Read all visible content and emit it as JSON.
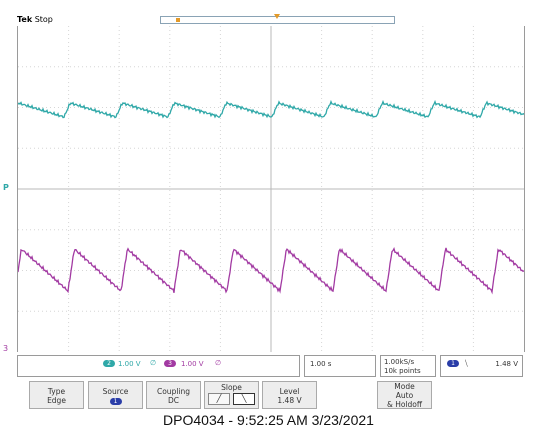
{
  "header": {
    "brand": "Tek",
    "state": "Stop"
  },
  "channels": {
    "ch2": {
      "number": "2",
      "scale": "1.00 V",
      "bw": "∅",
      "color": "#2fa8a8",
      "marker": "P"
    },
    "ch3": {
      "number": "3",
      "scale": "1.00 V",
      "bw": "∅",
      "color": "#a23aa2",
      "marker": "3"
    }
  },
  "timebase": "1.00 s",
  "sample": {
    "rate": "1.00kS/s",
    "length": "10k points"
  },
  "trigger": {
    "source_number": "1",
    "slope_glyph": "⧹",
    "level": "1.48 V"
  },
  "menu": {
    "type": {
      "label": "Type",
      "value": "Edge"
    },
    "source": {
      "label": "Source",
      "value": "1"
    },
    "coupling": {
      "label": "Coupling",
      "value": "DC"
    },
    "slope": {
      "label": "Slope",
      "rise_icon": "rising-edge-icon",
      "fall_icon": "falling-edge-icon"
    },
    "level": {
      "label": "Level",
      "value": "1.48 V"
    },
    "mode": {
      "label": "Mode",
      "value": "Auto",
      "value2": "& Holdoff"
    }
  },
  "caption": "DPO4034 - 9:52:25 AM   3/23/2021"
}
